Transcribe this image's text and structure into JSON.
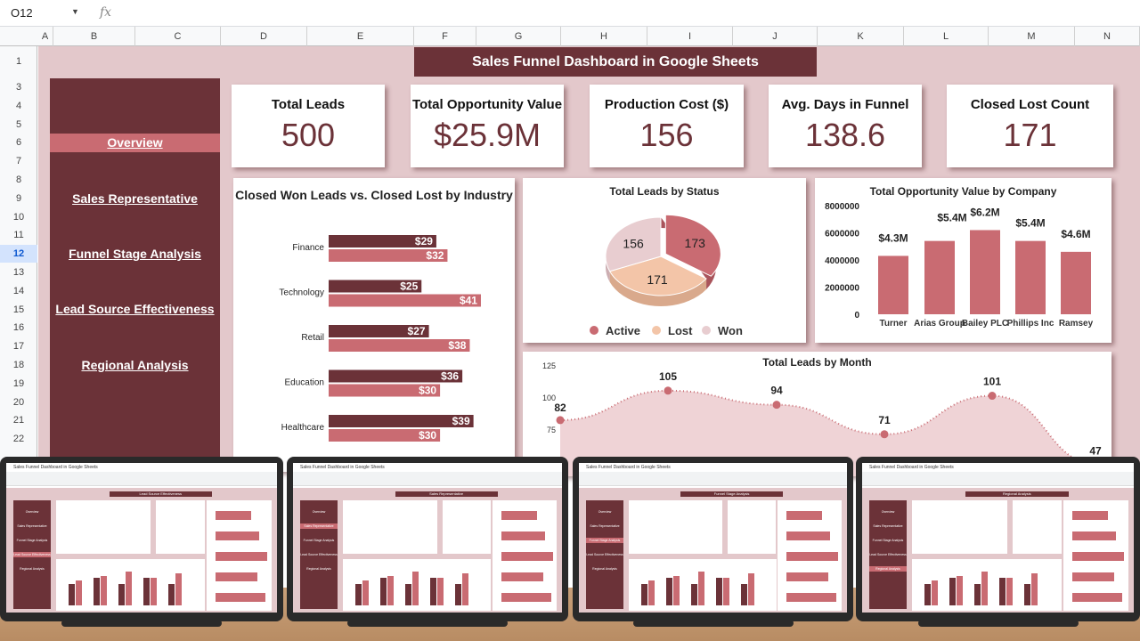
{
  "sheet": {
    "name_box": "O12",
    "fx_label": "fx",
    "columns": [
      "A",
      "B",
      "C",
      "D",
      "E",
      "F",
      "G",
      "H",
      "I",
      "J",
      "K",
      "L",
      "M",
      "N"
    ],
    "rows": [
      "1",
      "3",
      "4",
      "5",
      "6",
      "7",
      "8",
      "9",
      "10",
      "11",
      "12",
      "13",
      "14",
      "15",
      "16",
      "17",
      "18",
      "19",
      "20",
      "21",
      "22"
    ],
    "selected_row": "12"
  },
  "dashboard": {
    "title": "Sales Funnel Dashboard  in Google Sheets",
    "nav": [
      {
        "label": "Overview",
        "active": true
      },
      {
        "label": "Sales Representative"
      },
      {
        "label": "Funnel Stage Analysis"
      },
      {
        "label": "Lead Source Effectiveness"
      },
      {
        "label": "Regional Analysis"
      }
    ],
    "kpis": [
      {
        "label": "Total Leads",
        "value": "500"
      },
      {
        "label": "Total Opportunity Value",
        "value": "$25.9M"
      },
      {
        "label": "Production Cost ($)",
        "value": "156"
      },
      {
        "label": "Avg. Days in Funnel",
        "value": "138.6"
      },
      {
        "label": "Closed Lost Count",
        "value": "171"
      }
    ],
    "colors": {
      "primary": "#6b3238",
      "accent": "#c96b72",
      "background": "#e3c8cb",
      "peach": "#f3c5a8",
      "light": "#e8cdd0"
    }
  },
  "chart_data": [
    {
      "type": "bar",
      "orientation": "horizontal",
      "title": "Closed Won Leads vs. Closed Lost by Industry",
      "categories": [
        "Finance",
        "Technology",
        "Retail",
        "Education",
        "Healthcare"
      ],
      "series": [
        {
          "values": [
            29,
            25,
            27,
            36,
            39
          ],
          "labels": [
            "$29",
            "$25",
            "$27",
            "$36",
            "$39"
          ],
          "color": "#6b3238"
        },
        {
          "values": [
            32,
            41,
            38,
            30,
            30
          ],
          "labels": [
            "$32",
            "$41",
            "$38",
            "$30",
            "$30"
          ],
          "color": "#c96b72"
        }
      ]
    },
    {
      "type": "pie",
      "title": "Total Leads by Status",
      "categories": [
        "Active",
        "Lost",
        "Won"
      ],
      "values": [
        173,
        171,
        156
      ],
      "colors": [
        "#c96b72",
        "#f3c5a8",
        "#e8cdd0"
      ],
      "legend": "bottom"
    },
    {
      "type": "bar",
      "title": "Total Opportunity Value by Company",
      "categories": [
        "Turner",
        "Arias Group",
        "Bailey PLC",
        "Phillips Inc",
        "Ramsey"
      ],
      "values": [
        4300000,
        5400000,
        6200000,
        5400000,
        4600000
      ],
      "labels": [
        "$4.3M",
        "$5.4M",
        "$6.2M",
        "$5.4M",
        "$4.6M"
      ],
      "ylim": [
        0,
        8000000
      ],
      "yticks": [
        "0",
        "2000000",
        "4000000",
        "6000000",
        "8000000"
      ],
      "color": "#c96b72"
    },
    {
      "type": "area",
      "title": "Total Leads by Month",
      "values": [
        82,
        105,
        94,
        71,
        101,
        47
      ],
      "yticks": [
        "75",
        "100",
        "125"
      ],
      "color": "#c96b72"
    }
  ],
  "previews": [
    {
      "title": "Lead Source Effectiveness",
      "active": 3
    },
    {
      "title": "Sales Representative",
      "active": 1
    },
    {
      "title": "Funnel Stage Analysis",
      "active": 2
    },
    {
      "title": "Regional Analysis",
      "active": 4
    }
  ],
  "preview_doc_title": "Sales Funnel Dashboard in Google Sheets"
}
